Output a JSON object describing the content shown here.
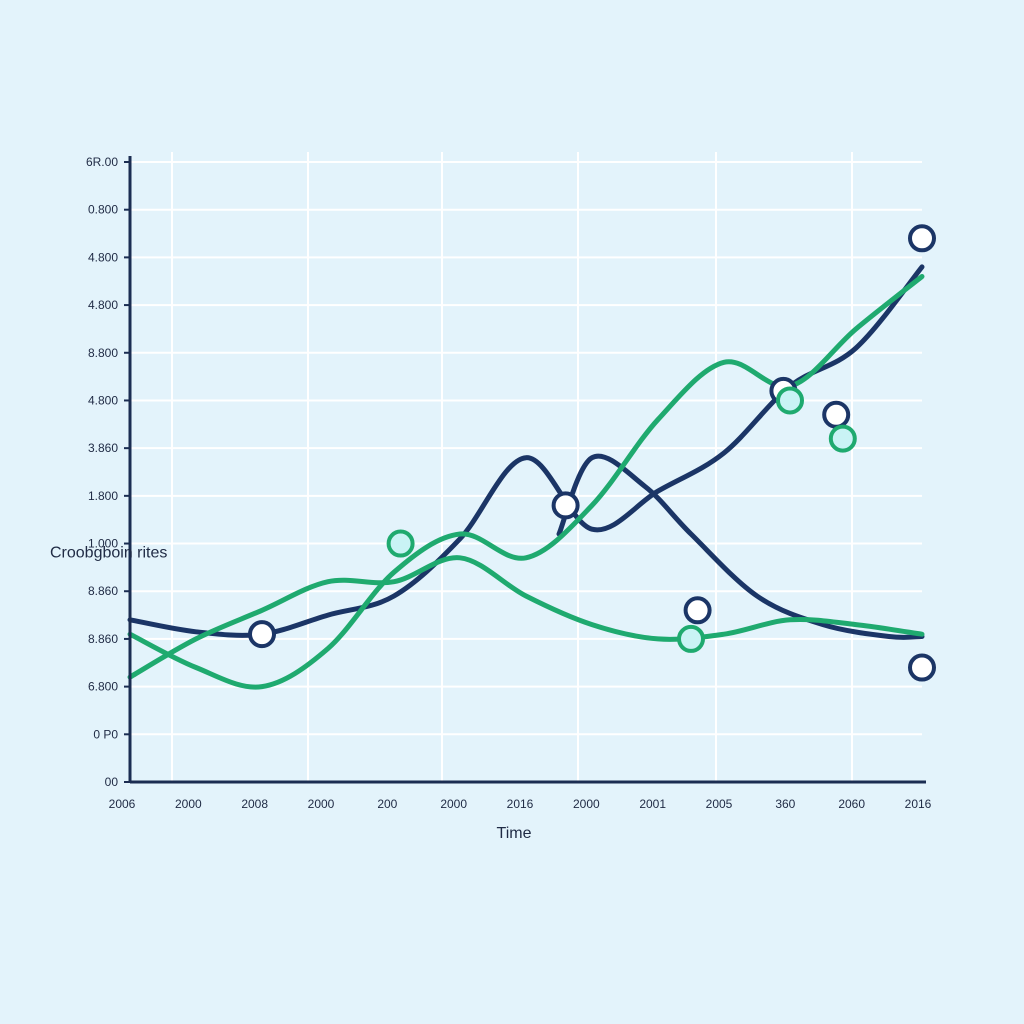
{
  "colors": {
    "background": "#e3f3fb",
    "plot_background": "#e3f3fb",
    "grid": "#ffffff",
    "axis": "#1b2d52",
    "navy": "#1b3566",
    "green": "#1faa6f",
    "marker_fill_white": "#ffffff",
    "marker_fill_cyan": "#c9f3f5"
  },
  "chart_data": {
    "type": "line",
    "title": "",
    "xlabel": "Time",
    "ylabel": "Croobgboin rites",
    "x_tick_labels": [
      "2006",
      "2000",
      "2008",
      "2000",
      "200",
      "2000",
      "2016",
      "2000",
      "2001",
      "2005",
      "360",
      "2060",
      "2016"
    ],
    "y_tick_labels": [
      "00",
      "0 P0",
      "6.800",
      "8.860",
      "8.860",
      "1.000",
      "1.800",
      "3.860",
      "4.800",
      "8.800",
      "4.800",
      "4.800",
      "0.800",
      "6R.00"
    ],
    "x_range": [
      0,
      12
    ],
    "y_range": [
      0,
      13
    ],
    "grid": true,
    "legend": "none",
    "series": [
      {
        "color": "navy",
        "points": [
          [
            0,
            3.4
          ],
          [
            1,
            3.15
          ],
          [
            2,
            3.1
          ],
          [
            3,
            3.5
          ],
          [
            4,
            3.9
          ],
          [
            5,
            5.1
          ],
          [
            6,
            6.8
          ],
          [
            7,
            5.3
          ],
          [
            8,
            6.1
          ],
          [
            9,
            6.9
          ],
          [
            10,
            8.3
          ],
          [
            11,
            9.1
          ],
          [
            12,
            10.8
          ]
        ],
        "markers": [
          {
            "x": 2.0,
            "y": 3.1,
            "fill": "marker_fill_white"
          },
          {
            "x": 6.6,
            "y": 5.8,
            "fill": "marker_fill_white"
          },
          {
            "x": 9.9,
            "y": 8.2,
            "fill": "marker_fill_white"
          },
          {
            "x": 10.7,
            "y": 7.7,
            "fill": "marker_fill_white"
          },
          {
            "x": 12.0,
            "y": 11.4,
            "fill": "marker_fill_white"
          }
        ]
      },
      {
        "color": "navy",
        "points": [
          [
            6.5,
            5.2
          ],
          [
            7.0,
            6.8
          ],
          [
            7.8,
            6.2
          ],
          [
            8.5,
            5.2
          ],
          [
            9.5,
            3.9
          ],
          [
            10.5,
            3.3
          ],
          [
            11.5,
            3.05
          ],
          [
            12.0,
            3.05
          ]
        ],
        "markers": [
          {
            "x": 8.6,
            "y": 3.6,
            "fill": "marker_fill_white"
          },
          {
            "x": 12.0,
            "y": 2.4,
            "fill": "marker_fill_white"
          }
        ]
      },
      {
        "color": "green",
        "points": [
          [
            0,
            2.2
          ],
          [
            1,
            3.0
          ],
          [
            2,
            3.6
          ],
          [
            3,
            4.2
          ],
          [
            4,
            4.2
          ],
          [
            5,
            4.7
          ],
          [
            6,
            3.9
          ],
          [
            7,
            3.3
          ],
          [
            8,
            3.0
          ],
          [
            9,
            3.1
          ],
          [
            10,
            3.4
          ],
          [
            11,
            3.3
          ],
          [
            12,
            3.1
          ]
        ],
        "markers": [
          {
            "x": 8.5,
            "y": 3.0,
            "fill": "marker_fill_cyan"
          }
        ]
      },
      {
        "color": "green",
        "points": [
          [
            0,
            3.1
          ],
          [
            1,
            2.4
          ],
          [
            2,
            2.0
          ],
          [
            3,
            2.8
          ],
          [
            4,
            4.4
          ],
          [
            5,
            5.2
          ],
          [
            6,
            4.7
          ],
          [
            7,
            5.8
          ],
          [
            8,
            7.6
          ],
          [
            9,
            8.8
          ],
          [
            10,
            8.3
          ],
          [
            11,
            9.5
          ],
          [
            12,
            10.6
          ]
        ],
        "markers": [
          {
            "x": 4.1,
            "y": 5.0,
            "fill": "marker_fill_cyan"
          },
          {
            "x": 10.0,
            "y": 8.0,
            "fill": "marker_fill_cyan"
          },
          {
            "x": 10.8,
            "y": 7.2,
            "fill": "marker_fill_cyan"
          }
        ]
      }
    ]
  }
}
